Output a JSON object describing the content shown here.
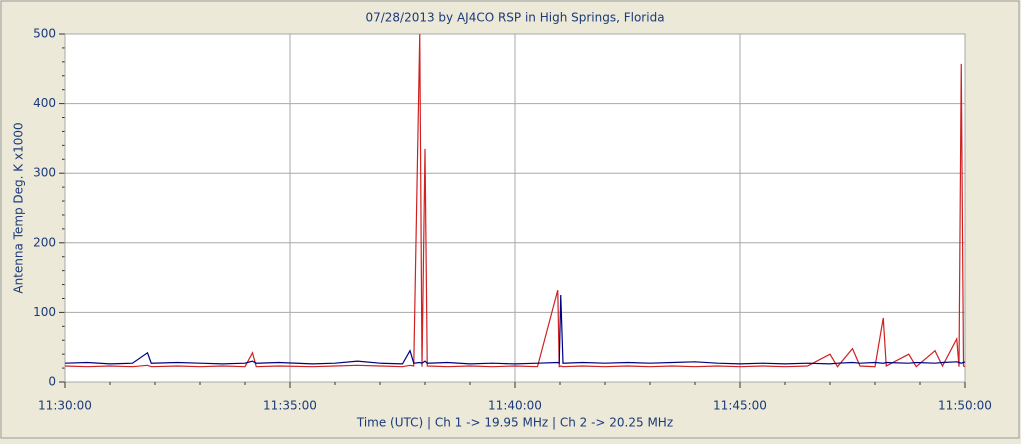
{
  "chart_data": {
    "type": "line",
    "title": "07/28/2013  by  AJ4CO RSP  in  High Springs, Florida",
    "x_label": "Time (UTC)     |     Ch 1 -> 19.95 MHz     |     Ch 2 -> 20.25 MHz",
    "y_label": "Antenna Temp Deg. K x1000",
    "x": [
      "11:30:00",
      "11:30:30",
      "11:31:00",
      "11:31:30",
      "11:31:50",
      "11:31:55",
      "11:32:30",
      "11:33:00",
      "11:33:30",
      "11:34:00",
      "11:34:10",
      "11:34:15",
      "11:34:45",
      "11:35:30",
      "11:36:00",
      "11:36:30",
      "11:37:00",
      "11:37:30",
      "11:37:40",
      "11:37:45",
      "11:37:53",
      "11:37:56",
      "11:38:00",
      "11:38:03",
      "11:38:30",
      "11:39:00",
      "11:39:30",
      "11:40:00",
      "11:40:30",
      "11:40:57",
      "11:40:59",
      "11:41:01",
      "11:41:04",
      "11:41:30",
      "11:42:00",
      "11:42:30",
      "11:43:00",
      "11:43:30",
      "11:44:00",
      "11:44:30",
      "11:45:00",
      "11:45:30",
      "11:46:00",
      "11:46:30",
      "11:47:00",
      "11:47:10",
      "11:47:30",
      "11:47:40",
      "11:48:00",
      "11:48:11",
      "11:48:15",
      "11:48:45",
      "11:48:55",
      "11:49:20",
      "11:49:30",
      "11:49:49",
      "11:49:52",
      "11:49:55",
      "11:49:58",
      "11:50:00"
    ],
    "series": [
      {
        "color": "#d02020",
        "values": [
          23,
          22,
          23,
          22,
          24,
          22,
          23,
          22,
          23,
          22,
          42,
          22,
          23,
          22,
          23,
          24,
          23,
          22,
          24,
          23,
          500,
          22,
          335,
          23,
          22,
          23,
          22,
          23,
          22,
          132,
          22,
          23,
          22,
          23,
          22,
          23,
          22,
          23,
          22,
          23,
          22,
          23,
          22,
          23,
          40,
          22,
          48,
          23,
          22,
          92,
          23,
          40,
          22,
          45,
          23,
          62,
          22,
          457,
          23,
          22
        ]
      },
      {
        "color": "#000080",
        "values": [
          27,
          28,
          26,
          27,
          42,
          27,
          28,
          27,
          26,
          27,
          30,
          27,
          28,
          26,
          27,
          30,
          27,
          26,
          45,
          27,
          28,
          27,
          30,
          27,
          28,
          26,
          27,
          26,
          27,
          28,
          27,
          125,
          27,
          28,
          27,
          28,
          27,
          28,
          29,
          27,
          26,
          27,
          26,
          27,
          26,
          27,
          28,
          27,
          28,
          27,
          28,
          27,
          28,
          27,
          28,
          29,
          28,
          27,
          28,
          29
        ]
      }
    ],
    "xlim": [
      "11:30:00",
      "11:50:00"
    ],
    "xticks": [
      "11:30:00",
      "11:35:00",
      "11:40:00",
      "11:45:00",
      "11:50:00"
    ],
    "xminorticks": [
      "11:31:00",
      "11:32:00",
      "11:33:00",
      "11:34:00",
      "11:36:00",
      "11:37:00",
      "11:38:00",
      "11:39:00",
      "11:41:00",
      "11:42:00",
      "11:43:00",
      "11:44:00",
      "11:46:00",
      "11:47:00",
      "11:48:00",
      "11:49:00"
    ],
    "ylim": [
      0,
      500
    ],
    "yticks": [
      0,
      100,
      200,
      300,
      400,
      500
    ],
    "yminorticks": [
      20,
      40,
      60,
      80,
      120,
      140,
      160,
      180,
      220,
      240,
      260,
      280,
      320,
      340,
      360,
      380,
      420,
      440,
      460,
      480
    ],
    "grid": true
  }
}
